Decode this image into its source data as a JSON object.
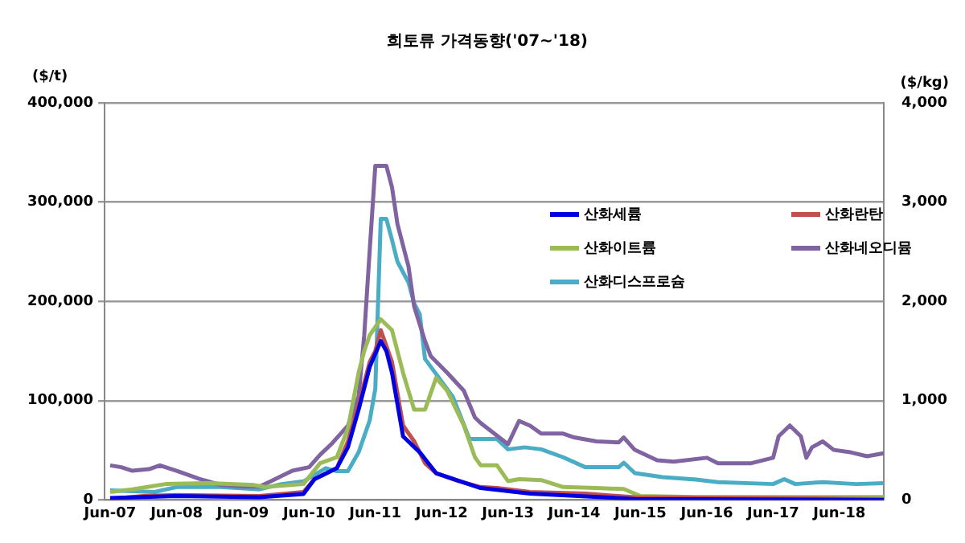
{
  "chart_data": {
    "type": "line",
    "title": "희토류 가격동향('07~'18)",
    "ylabel": "($/t)",
    "y2label": "($/kg)",
    "xlim": [
      "2007-05",
      "2019-02"
    ],
    "xticks": [
      {
        "value": "2007-06",
        "label": "Jun-07"
      },
      {
        "value": "2008-06",
        "label": "Jun-08"
      },
      {
        "value": "2009-06",
        "label": "Jun-09"
      },
      {
        "value": "2010-06",
        "label": "Jun-10"
      },
      {
        "value": "2011-06",
        "label": "Jun-11"
      },
      {
        "value": "2012-06",
        "label": "Jun-12"
      },
      {
        "value": "2013-06",
        "label": "Jun-13"
      },
      {
        "value": "2014-06",
        "label": "Jun-14"
      },
      {
        "value": "2015-06",
        "label": "Jun-15"
      },
      {
        "value": "2016-06",
        "label": "Jun-16"
      },
      {
        "value": "2017-06",
        "label": "Jun-17"
      },
      {
        "value": "2018-06",
        "label": "Jun-18"
      }
    ],
    "ylim": [
      0,
      400000
    ],
    "yticks": [
      0,
      {
        "value": 100000,
        "label": "100,000"
      },
      {
        "value": 200000,
        "label": "200,000"
      },
      {
        "value": 300000,
        "label": "300,000"
      },
      {
        "value": 400000,
        "label": "400,000"
      }
    ],
    "y2lim": [
      0,
      4000
    ],
    "y2ticks": [
      0,
      {
        "value": 1000,
        "label": "1,000"
      },
      {
        "value": 2000,
        "label": "2,000"
      },
      {
        "value": 3000,
        "label": "3,000"
      },
      {
        "value": 4000,
        "label": "4,000"
      }
    ],
    "grid": "y",
    "legend": "top right",
    "marker": "none",
    "line_style": "solid",
    "series": [
      {
        "name": "산화세륨",
        "color": "#0000e0",
        "x": [
          "2007-06",
          "2008-06",
          "2009-09",
          "2010-05",
          "2010-07",
          "2010-11",
          "2011-01",
          "2011-03",
          "2011-05",
          "2011-07",
          "2011-08",
          "2011-09",
          "2011-11",
          "2012-02",
          "2012-05",
          "2013-01",
          "2013-10",
          "2015-05",
          "2019-02"
        ],
        "values": [
          2000,
          4000,
          2700,
          6000,
          21000,
          32000,
          53000,
          91000,
          134000,
          160000,
          150000,
          128000,
          64000,
          48000,
          27000,
          12000,
          6400,
          1000,
          0
        ]
      },
      {
        "name": "산화란탄",
        "color": "#c0504d",
        "x": [
          "2007-06",
          "2007-12",
          "2008-06",
          "2009-09",
          "2010-05",
          "2010-07",
          "2010-11",
          "2011-01",
          "2011-03",
          "2011-05",
          "2011-06",
          "2011-07",
          "2011-09",
          "2011-11",
          "2012-01",
          "2012-03",
          "2012-05",
          "2012-09",
          "2013-01",
          "2013-04",
          "2013-10",
          "2014-08",
          "2015-05",
          "2019-02"
        ],
        "values": [
          1000,
          4000,
          5000,
          4000,
          8000,
          21000,
          32000,
          59000,
          96000,
          139000,
          150000,
          171000,
          139000,
          75000,
          59000,
          37000,
          27000,
          19000,
          13000,
          12000,
          8000,
          6400,
          2700,
          1000
        ]
      },
      {
        "name": "산화이트륨",
        "color": "#9bbb59",
        "x": [
          "2007-06",
          "2007-10",
          "2008-04",
          "2008-12",
          "2009-08",
          "2009-10",
          "2010-05",
          "2010-08",
          "2010-11",
          "2011-01",
          "2011-03",
          "2011-04",
          "2011-05",
          "2011-07",
          "2011-09",
          "2011-11",
          "2012-01",
          "2012-03",
          "2012-05",
          "2012-07",
          "2012-10",
          "2012-12",
          "2013-01",
          "2013-04",
          "2013-06",
          "2013-08",
          "2013-12",
          "2014-04",
          "2014-10",
          "2015-03",
          "2015-06",
          "2016-04",
          "2019-02"
        ],
        "values": [
          8000,
          10700,
          16000,
          17000,
          15000,
          13000,
          16000,
          37000,
          43000,
          72000,
          128000,
          150000,
          166000,
          182000,
          171000,
          128000,
          91000,
          91000,
          123000,
          110000,
          75000,
          43000,
          35000,
          35000,
          19000,
          21000,
          20000,
          13000,
          12000,
          11000,
          4000,
          3000,
          3000
        ]
      },
      {
        "name": "산화네오디뮴",
        "color": "#8064a2",
        "x": [
          "2007-06",
          "2007-08",
          "2007-10",
          "2008-01",
          "2008-03",
          "2008-06",
          "2008-10",
          "2009-02",
          "2009-06",
          "2009-09",
          "2009-11",
          "2010-03",
          "2010-06",
          "2010-08",
          "2010-10",
          "2011-01",
          "2011-03",
          "2011-04",
          "2011-05",
          "2011-06",
          "2011-08",
          "2011-09",
          "2011-10",
          "2011-12",
          "2012-01",
          "2012-03",
          "2012-04",
          "2012-07",
          "2012-10",
          "2012-12",
          "2013-01",
          "2013-06",
          "2013-08",
          "2013-10",
          "2013-12",
          "2014-04",
          "2014-06",
          "2014-10",
          "2015-02",
          "2015-03",
          "2015-05",
          "2015-09",
          "2015-12",
          "2016-06",
          "2016-08",
          "2017-02",
          "2017-06",
          "2017-07",
          "2017-09",
          "2017-11",
          "2017-12",
          "2018-01",
          "2018-03",
          "2018-05",
          "2018-08",
          "2018-11",
          "2019-02"
        ],
        "values": [
          34800,
          33000,
          29400,
          31000,
          34800,
          29400,
          21400,
          15000,
          13400,
          13400,
          18700,
          29400,
          33000,
          45500,
          56100,
          74900,
          104300,
          166000,
          251000,
          336500,
          336500,
          315000,
          278000,
          235000,
          195000,
          160000,
          145000,
          128200,
          110000,
          83000,
          77600,
          56100,
          79600,
          74800,
          66800,
          66800,
          63000,
          59000,
          58000,
          63000,
          50400,
          40000,
          38500,
          42500,
          37000,
          37000,
          42500,
          64000,
          75000,
          64000,
          42500,
          53000,
          59000,
          50400,
          48000,
          44000,
          47000
        ]
      },
      {
        "name": "산화디스프로슘",
        "color": "#4bacc6",
        "axis": "y2",
        "x": [
          "2007-06",
          "2008-02",
          "2008-06",
          "2009-02",
          "2009-09",
          "2010-01",
          "2010-05",
          "2010-09",
          "2010-11",
          "2011-01",
          "2011-03",
          "2011-05",
          "2011-06",
          "2011-07",
          "2011-08",
          "2011-09",
          "2011-10",
          "2011-12",
          "2012-01",
          "2012-02",
          "2012-03",
          "2012-08",
          "2012-11",
          "2013-04",
          "2013-06",
          "2013-09",
          "2013-12",
          "2014-04",
          "2014-08",
          "2015-02",
          "2015-03",
          "2015-05",
          "2015-10",
          "2016-04",
          "2016-08",
          "2017-06",
          "2017-08",
          "2017-10",
          "2018-03",
          "2018-09",
          "2019-02"
        ],
        "values": [
          96,
          80,
          130,
          130,
          107,
          160,
          187,
          320,
          290,
          290,
          480,
          800,
          1120,
          2830,
          2830,
          2620,
          2400,
          2190,
          1980,
          1870,
          1420,
          1040,
          615,
          615,
          510,
          530,
          510,
          430,
          330,
          330,
          375,
          270,
          230,
          205,
          180,
          160,
          210,
          160,
          180,
          160,
          170
        ]
      }
    ]
  }
}
